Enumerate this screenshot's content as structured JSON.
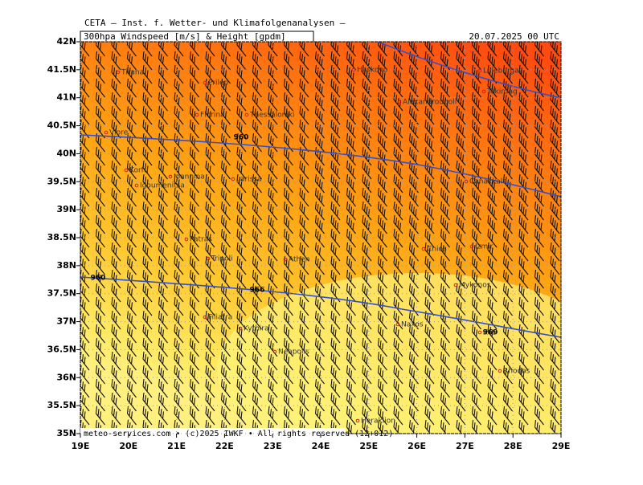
{
  "header": {
    "title": "CETA — Inst. f. Wetter- und Klimafolgenanalysen —",
    "product": "300hpa Windspeed [m/s] & Height [gpdm]",
    "valid": "20.07.2025 00 UTC"
  },
  "map": {
    "lon_ticks": [
      {
        "value": 19,
        "label": "19E"
      },
      {
        "value": 20,
        "label": "20E"
      },
      {
        "value": 21,
        "label": "21E"
      },
      {
        "value": 22,
        "label": "22E"
      },
      {
        "value": 23,
        "label": "23E"
      },
      {
        "value": 24,
        "label": "24E"
      },
      {
        "value": 25,
        "label": "25E"
      },
      {
        "value": 26,
        "label": "26E"
      },
      {
        "value": 27,
        "label": "27E"
      },
      {
        "value": 28,
        "label": "28E"
      },
      {
        "value": 29,
        "label": "29E"
      }
    ],
    "lat_ticks": [
      {
        "value": 35,
        "label": "35N"
      },
      {
        "value": 35.5,
        "label": "35.5N"
      },
      {
        "value": 36,
        "label": "36N"
      },
      {
        "value": 36.5,
        "label": "36.5N"
      },
      {
        "value": 37,
        "label": "37N"
      },
      {
        "value": 37.5,
        "label": "37.5N"
      },
      {
        "value": 38,
        "label": "38N"
      },
      {
        "value": 38.5,
        "label": "38.5N"
      },
      {
        "value": 39,
        "label": "39N"
      },
      {
        "value": 39.5,
        "label": "39.5N"
      },
      {
        "value": 40,
        "label": "40N"
      },
      {
        "value": 40.5,
        "label": "40.5N"
      },
      {
        "value": 41,
        "label": "41N"
      },
      {
        "value": 41.5,
        "label": "41.5N"
      },
      {
        "value": 42,
        "label": "42N"
      }
    ],
    "contour_labels": [
      "960",
      "960",
      "966",
      "969"
    ],
    "cities": [
      "Tirana",
      "Prilep",
      "Florina",
      "Thessaloniki",
      "Vlore",
      "Korfu",
      "Ioannina",
      "Igoumenitsa",
      "Larissa",
      "Patras",
      "Tripoli",
      "Athen",
      "Chios",
      "Izmir",
      "Mykonos",
      "Naxos",
      "Filiatra",
      "Kythira",
      "Neapolis",
      "Heraklion",
      "Rhodos",
      "Haskovo",
      "Luleburgaz",
      "Tekirdag",
      "Alexandroupoli",
      "Canakkale",
      "Kos"
    ]
  },
  "footer": "meteo-services.com • (c)2025 IWKF • All rights reserved (12+012)"
}
